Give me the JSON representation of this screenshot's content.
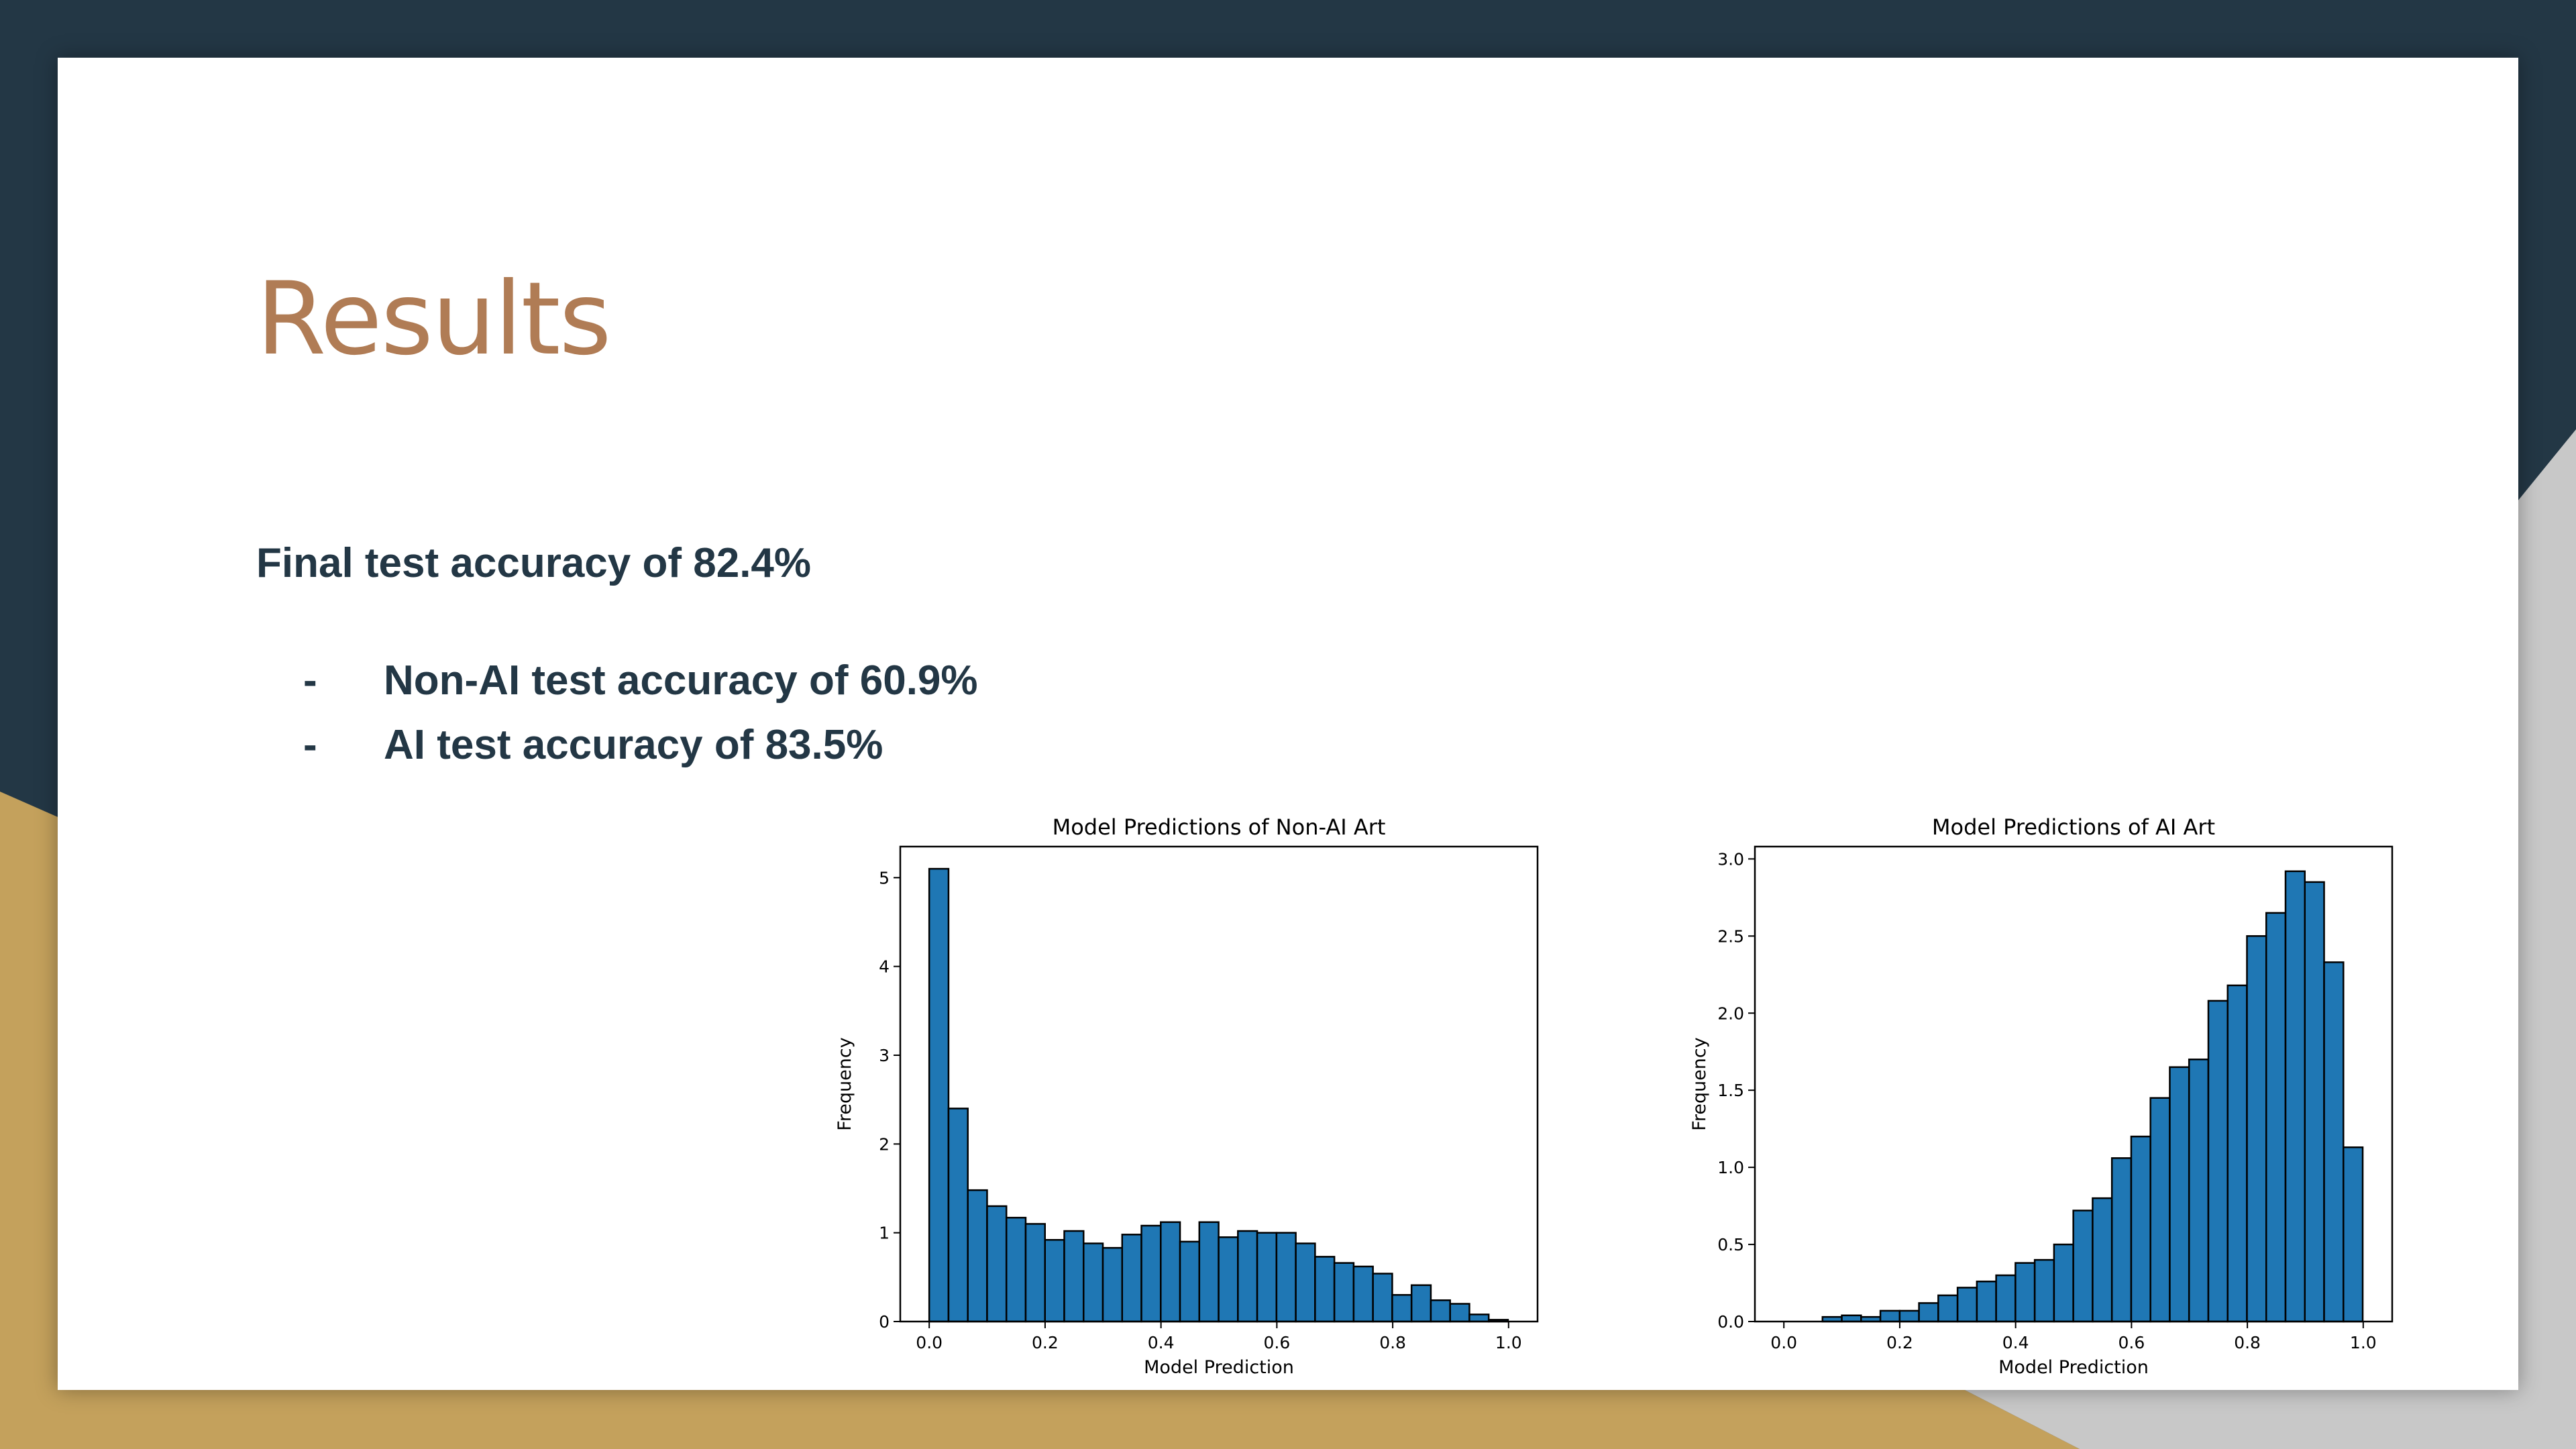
{
  "slide": {
    "title": "Results",
    "headline": "Final test accuracy of 82.4%",
    "bullets": [
      {
        "marker": "-",
        "text": "Non-AI test accuracy of 60.9%"
      },
      {
        "marker": "-",
        "text": "AI test accuracy of 83.5%"
      }
    ]
  },
  "colors": {
    "background_dark": "#233745",
    "background_gold": "#c4a15c",
    "background_gray": "#c8c8c8",
    "title": "#b07c55",
    "body_text": "#233745",
    "bar_fill": "#1f77b4",
    "bar_edge": "#000000"
  },
  "chart_data": [
    {
      "type": "bar",
      "title": "Model Predictions of Non-AI Art",
      "xlabel": "Model Prediction",
      "ylabel": "Frequency",
      "xlim": [
        -0.05,
        1.05
      ],
      "ylim": [
        0,
        5.35
      ],
      "xticks": [
        "0.0",
        "0.2",
        "0.4",
        "0.6",
        "0.8",
        "1.0"
      ],
      "xtick_values": [
        0.0,
        0.2,
        0.4,
        0.6,
        0.8,
        1.0
      ],
      "yticks": [
        "0",
        "1",
        "2",
        "3",
        "4",
        "5"
      ],
      "ytick_values": [
        0,
        1,
        2,
        3,
        4,
        5
      ],
      "bin_start": 0.0,
      "bin_width": 0.0333,
      "values": [
        5.1,
        2.4,
        1.48,
        1.3,
        1.17,
        1.1,
        0.92,
        1.02,
        0.88,
        0.83,
        0.98,
        1.08,
        1.12,
        0.9,
        1.12,
        0.95,
        1.02,
        1.0,
        1.0,
        0.88,
        0.73,
        0.66,
        0.62,
        0.54,
        0.3,
        0.41,
        0.24,
        0.2,
        0.08,
        0.02
      ]
    },
    {
      "type": "bar",
      "title": "Model Predictions of AI Art",
      "xlabel": "Model Prediction",
      "ylabel": "Frequency",
      "xlim": [
        -0.05,
        1.05
      ],
      "ylim": [
        0,
        3.08
      ],
      "xticks": [
        "0.0",
        "0.2",
        "0.4",
        "0.6",
        "0.8",
        "1.0"
      ],
      "xtick_values": [
        0.0,
        0.2,
        0.4,
        0.6,
        0.8,
        1.0
      ],
      "yticks": [
        "0.0",
        "0.5",
        "1.0",
        "1.5",
        "2.0",
        "2.5",
        "3.0"
      ],
      "ytick_values": [
        0.0,
        0.5,
        1.0,
        1.5,
        2.0,
        2.5,
        3.0
      ],
      "bin_start": 0.0667,
      "bin_width": 0.0333,
      "values": [
        0.03,
        0.04,
        0.03,
        0.07,
        0.07,
        0.12,
        0.17,
        0.22,
        0.26,
        0.3,
        0.38,
        0.4,
        0.5,
        0.72,
        0.8,
        1.06,
        1.2,
        1.45,
        1.65,
        1.7,
        2.08,
        2.18,
        2.5,
        2.65,
        2.92,
        2.85,
        2.33,
        1.13
      ]
    }
  ]
}
